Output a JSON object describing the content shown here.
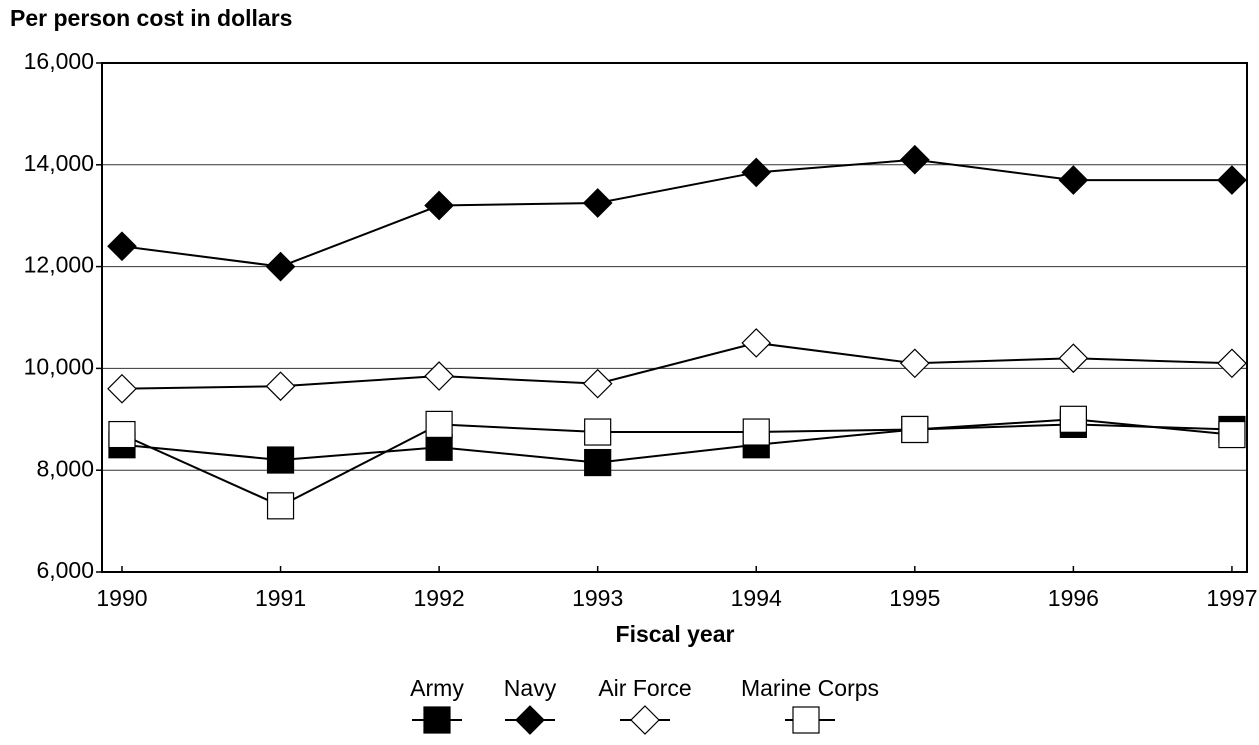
{
  "chart_data": {
    "type": "line",
    "title": "Per person cost in dollars",
    "x_label": "Fiscal year",
    "x": [
      1990,
      1991,
      1992,
      1993,
      1994,
      1995,
      1996,
      1997
    ],
    "xlim": [
      1989.874,
      1997.095
    ],
    "xticks": [
      1990,
      1991,
      1992,
      1993,
      1994,
      1995,
      1996,
      1997
    ],
    "ylim": [
      6000,
      16000
    ],
    "yticks": [
      {
        "value": 6000,
        "label": "6,000"
      },
      {
        "value": 8000,
        "label": "8,000"
      },
      {
        "value": 10000,
        "label": "10,000"
      },
      {
        "value": 12000,
        "label": "12,000"
      },
      {
        "value": 14000,
        "label": "14,000"
      },
      {
        "value": 16000,
        "label": "16,000"
      }
    ],
    "grid": true,
    "legend": "bottom",
    "series": [
      {
        "name": "Army",
        "color": "#000000",
        "marker": "square",
        "filled": true,
        "values": [
          8500,
          8200,
          8450,
          8150,
          8500,
          8800,
          8900,
          8800
        ]
      },
      {
        "name": "Navy",
        "color": "#000000",
        "marker": "diamond",
        "filled": true,
        "values": [
          12400,
          12000,
          13200,
          13250,
          13850,
          14100,
          13700,
          13700
        ]
      },
      {
        "name": "Air Force",
        "color": "#000000",
        "marker": "diamond",
        "filled": false,
        "values": [
          9600,
          9650,
          9850,
          9700,
          10500,
          10100,
          10200,
          10100
        ]
      },
      {
        "name": "Marine Corps",
        "color": "#000000",
        "marker": "square",
        "filled": false,
        "values": [
          8700,
          7300,
          8900,
          8750,
          8750,
          8800,
          9000,
          8700
        ]
      }
    ]
  }
}
